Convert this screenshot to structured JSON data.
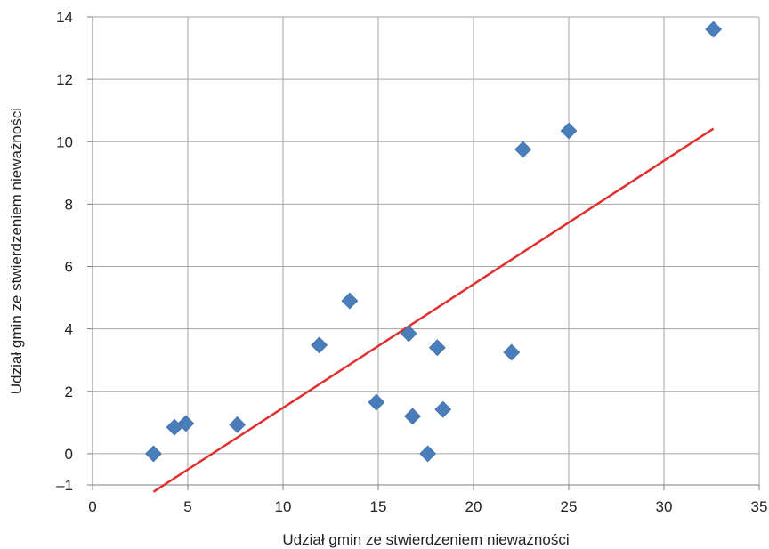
{
  "chart_data": {
    "type": "scatter",
    "xlabel": "Udział gmin ze stwierdzeniem nieważności",
    "ylabel": "Udział gmin ze stwierdzeniem nieważności",
    "xlim": [
      0,
      35
    ],
    "ylim": [
      -1,
      14
    ],
    "xticks": [
      0,
      5,
      10,
      15,
      20,
      25,
      30,
      35
    ],
    "yticks": [
      -1,
      0,
      2,
      4,
      6,
      8,
      10,
      12,
      14
    ],
    "xtick_labels": [
      "0",
      "5",
      "10",
      "15",
      "20",
      "25",
      "30",
      "35"
    ],
    "ytick_labels": [
      "–1",
      "0",
      "2",
      "4",
      "6",
      "8",
      "10",
      "12",
      "14"
    ],
    "grid": true,
    "marker_color": "#4a7ebb",
    "trendline_color": "#e03030",
    "points": [
      {
        "x": 3.2,
        "y": 0.0
      },
      {
        "x": 4.3,
        "y": 0.85
      },
      {
        "x": 4.9,
        "y": 0.97
      },
      {
        "x": 7.6,
        "y": 0.93
      },
      {
        "x": 11.9,
        "y": 3.48
      },
      {
        "x": 13.5,
        "y": 4.9
      },
      {
        "x": 14.9,
        "y": 1.65
      },
      {
        "x": 16.6,
        "y": 3.85
      },
      {
        "x": 16.8,
        "y": 1.2
      },
      {
        "x": 17.6,
        "y": 0.0
      },
      {
        "x": 18.1,
        "y": 3.4
      },
      {
        "x": 18.4,
        "y": 1.42
      },
      {
        "x": 22.0,
        "y": 3.25
      },
      {
        "x": 22.6,
        "y": 9.75
      },
      {
        "x": 25.0,
        "y": 10.35
      },
      {
        "x": 32.6,
        "y": 13.6
      }
    ],
    "trendline": {
      "x": [
        3.2,
        32.6
      ],
      "y": [
        -1.22,
        10.42
      ]
    }
  }
}
